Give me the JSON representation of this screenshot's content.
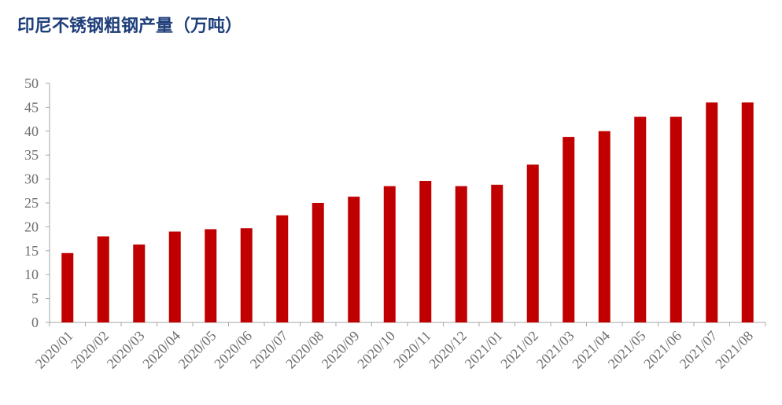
{
  "chart_data": {
    "type": "bar",
    "title": "印尼不锈钢粗钢产量（万吨）",
    "categories": [
      "2020/01",
      "2020/02",
      "2020/03",
      "2020/04",
      "2020/05",
      "2020/06",
      "2020/07",
      "2020/08",
      "2020/09",
      "2020/10",
      "2020/11",
      "2020/12",
      "2021/01",
      "2021/02",
      "2021/03",
      "2021/04",
      "2021/05",
      "2021/06",
      "2021/07",
      "2021/08"
    ],
    "values": [
      14.5,
      18,
      16.3,
      19,
      19.5,
      19.7,
      22.4,
      25,
      26.3,
      28.5,
      29.6,
      28.5,
      28.8,
      33,
      38.8,
      40,
      43,
      43,
      46,
      46
    ],
    "color": "#c00000",
    "ylim": [
      0,
      50
    ],
    "yticks": [
      0,
      5,
      10,
      15,
      20,
      25,
      30,
      35,
      40,
      45,
      50
    ],
    "grid": false
  }
}
